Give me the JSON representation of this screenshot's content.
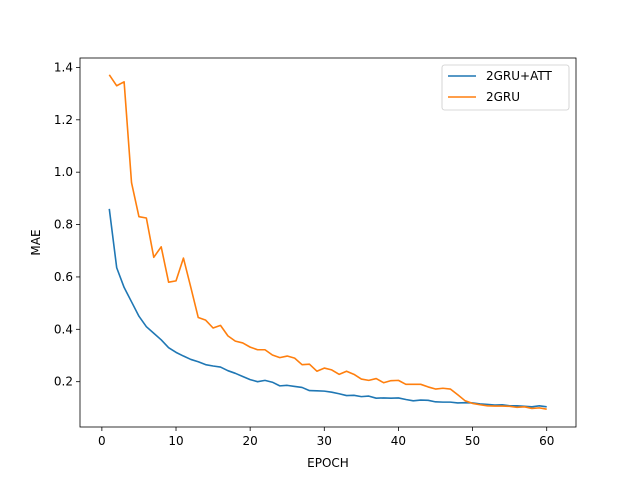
{
  "chart_data": {
    "type": "line",
    "title": "",
    "xlabel": "EPOCH",
    "ylabel": "MAE",
    "xlim": [
      -2.95,
      63.95
    ],
    "ylim": [
      0.027,
      1.436
    ],
    "xticks": [
      0,
      10,
      20,
      30,
      40,
      50,
      60
    ],
    "yticks": [
      0.2,
      0.4,
      0.6,
      0.8,
      1.0,
      1.2,
      1.4
    ],
    "grid": false,
    "legend_position": "top-right",
    "x": [
      1,
      2,
      3,
      4,
      5,
      6,
      7,
      8,
      9,
      10,
      11,
      12,
      13,
      14,
      15,
      16,
      17,
      18,
      19,
      20,
      21,
      22,
      23,
      24,
      25,
      26,
      27,
      28,
      29,
      30,
      31,
      32,
      33,
      34,
      35,
      36,
      37,
      38,
      39,
      40,
      41,
      42,
      43,
      44,
      45,
      46,
      47,
      48,
      49,
      50,
      51,
      52,
      53,
      54,
      55,
      56,
      57,
      58,
      59,
      60
    ],
    "series": [
      {
        "name": "2GRU+ATT",
        "color": "#1f77b4",
        "values": [
          0.86,
          0.635,
          0.56,
          0.505,
          0.45,
          0.41,
          0.385,
          0.36,
          0.33,
          0.312,
          0.298,
          0.285,
          0.276,
          0.265,
          0.26,
          0.256,
          0.242,
          0.232,
          0.22,
          0.208,
          0.2,
          0.205,
          0.198,
          0.184,
          0.186,
          0.182,
          0.178,
          0.166,
          0.165,
          0.164,
          0.16,
          0.154,
          0.147,
          0.148,
          0.143,
          0.145,
          0.137,
          0.138,
          0.137,
          0.138,
          0.132,
          0.127,
          0.13,
          0.129,
          0.123,
          0.122,
          0.122,
          0.119,
          0.12,
          0.119,
          0.115,
          0.113,
          0.111,
          0.112,
          0.108,
          0.108,
          0.106,
          0.104,
          0.108,
          0.104
        ]
      },
      {
        "name": "2GRU",
        "color": "#ff7f0e",
        "values": [
          1.372,
          1.33,
          1.345,
          0.96,
          0.83,
          0.825,
          0.675,
          0.715,
          0.58,
          0.585,
          0.672,
          0.56,
          0.445,
          0.435,
          0.405,
          0.415,
          0.375,
          0.355,
          0.348,
          0.332,
          0.322,
          0.322,
          0.302,
          0.292,
          0.298,
          0.29,
          0.265,
          0.267,
          0.24,
          0.252,
          0.245,
          0.228,
          0.24,
          0.228,
          0.21,
          0.205,
          0.212,
          0.196,
          0.204,
          0.205,
          0.19,
          0.19,
          0.19,
          0.18,
          0.172,
          0.175,
          0.172,
          0.15,
          0.127,
          0.117,
          0.112,
          0.108,
          0.107,
          0.107,
          0.106,
          0.102,
          0.104,
          0.098,
          0.1,
          0.095
        ]
      }
    ]
  }
}
